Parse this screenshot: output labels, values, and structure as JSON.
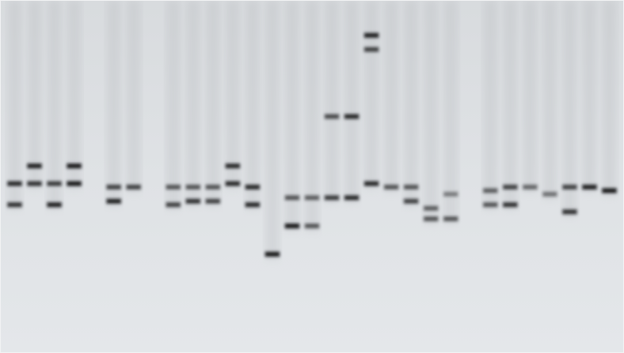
{
  "image": {
    "subject": "gel-electrophoresis",
    "background_color": "#d9dcdf",
    "band_color": "#141416",
    "lane_count": 31,
    "printed_text": []
  },
  "lanes": [
    {
      "id": 1,
      "bands": [
        {
          "level": 0.52,
          "intensity": 0.85
        },
        {
          "level": 0.58,
          "intensity": 0.8
        }
      ]
    },
    {
      "id": 2,
      "bands": [
        {
          "level": 0.47,
          "intensity": 0.9
        },
        {
          "level": 0.52,
          "intensity": 0.8
        }
      ]
    },
    {
      "id": 3,
      "bands": [
        {
          "level": 0.52,
          "intensity": 0.75
        },
        {
          "level": 0.58,
          "intensity": 0.9
        }
      ]
    },
    {
      "id": 4,
      "bands": [
        {
          "level": 0.47,
          "intensity": 0.95
        },
        {
          "level": 0.52,
          "intensity": 0.95
        }
      ]
    },
    {
      "id": 5,
      "bands": []
    },
    {
      "id": 6,
      "bands": [
        {
          "level": 0.53,
          "intensity": 0.7
        },
        {
          "level": 0.57,
          "intensity": 0.9
        }
      ]
    },
    {
      "id": 7,
      "bands": [
        {
          "level": 0.53,
          "intensity": 0.7
        }
      ]
    },
    {
      "id": 8,
      "bands": []
    },
    {
      "id": 9,
      "bands": [
        {
          "level": 0.53,
          "intensity": 0.6
        },
        {
          "level": 0.58,
          "intensity": 0.7
        }
      ]
    },
    {
      "id": 10,
      "bands": [
        {
          "level": 0.53,
          "intensity": 0.6
        },
        {
          "level": 0.57,
          "intensity": 0.8
        }
      ]
    },
    {
      "id": 11,
      "bands": [
        {
          "level": 0.53,
          "intensity": 0.6
        },
        {
          "level": 0.57,
          "intensity": 0.7
        }
      ]
    },
    {
      "id": 12,
      "bands": [
        {
          "level": 0.47,
          "intensity": 0.85
        },
        {
          "level": 0.52,
          "intensity": 0.85
        }
      ]
    },
    {
      "id": 13,
      "bands": [
        {
          "level": 0.53,
          "intensity": 0.85
        },
        {
          "level": 0.58,
          "intensity": 0.85
        }
      ]
    },
    {
      "id": 14,
      "bands": [
        {
          "level": 0.72,
          "intensity": 0.95
        }
      ]
    },
    {
      "id": 15,
      "bands": [
        {
          "level": 0.56,
          "intensity": 0.6
        },
        {
          "level": 0.64,
          "intensity": 0.95
        }
      ]
    },
    {
      "id": 16,
      "bands": [
        {
          "level": 0.56,
          "intensity": 0.55
        },
        {
          "level": 0.64,
          "intensity": 0.6
        }
      ]
    },
    {
      "id": 17,
      "bands": [
        {
          "level": 0.33,
          "intensity": 0.65
        },
        {
          "level": 0.56,
          "intensity": 0.75
        }
      ]
    },
    {
      "id": 18,
      "bands": [
        {
          "level": 0.33,
          "intensity": 0.85
        },
        {
          "level": 0.56,
          "intensity": 0.85
        }
      ]
    },
    {
      "id": 19,
      "bands": [
        {
          "level": 0.1,
          "intensity": 0.9
        },
        {
          "level": 0.14,
          "intensity": 0.7
        },
        {
          "level": 0.52,
          "intensity": 0.85
        }
      ]
    },
    {
      "id": 20,
      "bands": [
        {
          "level": 0.53,
          "intensity": 0.6
        }
      ]
    },
    {
      "id": 21,
      "bands": [
        {
          "level": 0.53,
          "intensity": 0.6
        },
        {
          "level": 0.57,
          "intensity": 0.7
        }
      ]
    },
    {
      "id": 22,
      "bands": [
        {
          "level": 0.59,
          "intensity": 0.55
        },
        {
          "level": 0.62,
          "intensity": 0.6
        }
      ]
    },
    {
      "id": 23,
      "bands": [
        {
          "level": 0.55,
          "intensity": 0.4
        },
        {
          "level": 0.62,
          "intensity": 0.6
        }
      ]
    },
    {
      "id": 24,
      "bands": []
    },
    {
      "id": 25,
      "bands": [
        {
          "level": 0.54,
          "intensity": 0.55
        },
        {
          "level": 0.58,
          "intensity": 0.6
        }
      ]
    },
    {
      "id": 26,
      "bands": [
        {
          "level": 0.53,
          "intensity": 0.7
        },
        {
          "level": 0.58,
          "intensity": 0.8
        }
      ]
    },
    {
      "id": 27,
      "bands": [
        {
          "level": 0.53,
          "intensity": 0.5
        }
      ]
    },
    {
      "id": 28,
      "bands": [
        {
          "level": 0.55,
          "intensity": 0.45
        }
      ]
    },
    {
      "id": 29,
      "bands": [
        {
          "level": 0.53,
          "intensity": 0.7
        },
        {
          "level": 0.6,
          "intensity": 0.8
        }
      ]
    },
    {
      "id": 30,
      "bands": [
        {
          "level": 0.53,
          "intensity": 0.9
        }
      ]
    },
    {
      "id": 31,
      "bands": [
        {
          "level": 0.54,
          "intensity": 0.95
        }
      ]
    }
  ]
}
